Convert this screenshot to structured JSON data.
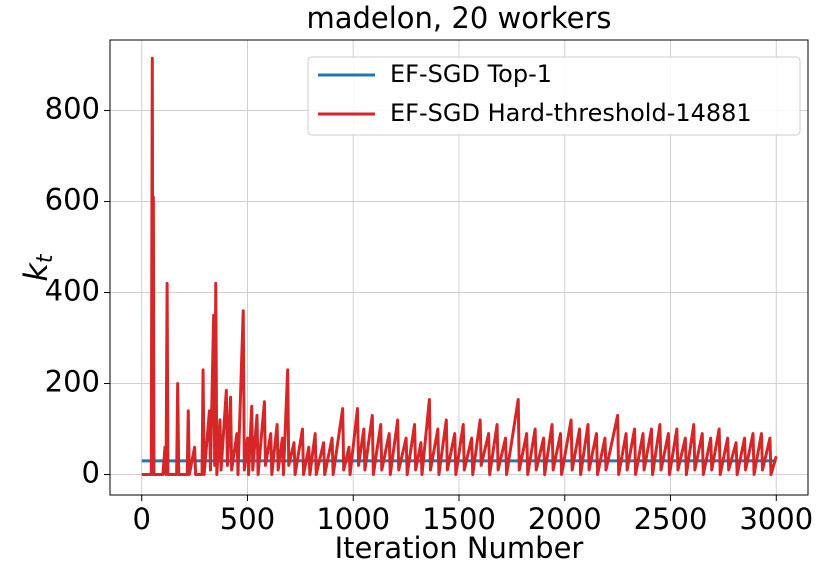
{
  "chart_data": {
    "type": "line",
    "title": "madelon, 20 workers",
    "xlabel": "Iteration Number",
    "ylabel": "k_t",
    "xlim": [
      -150,
      3150
    ],
    "xticks": [
      0,
      500,
      1000,
      1500,
      2000,
      2500,
      3000
    ],
    "ylim": [
      -45,
      955
    ],
    "yticks": [
      0,
      200,
      400,
      600,
      800
    ],
    "grid": true,
    "legend": "upper right",
    "series": [
      {
        "name": "EF-SGD Top-1",
        "color": "#1f77b4",
        "x": [
          0,
          3000
        ],
        "values": [
          30,
          30
        ]
      },
      {
        "name": "EF-SGD Hard-threshold-14881",
        "color": "#d62728",
        "x": [
          0,
          45,
          50,
          53,
          55,
          58,
          100,
          110,
          115,
          120,
          124,
          165,
          170,
          175,
          215,
          220,
          225,
          250,
          255,
          285,
          290,
          295,
          320,
          325,
          340,
          345,
          350,
          355,
          370,
          375,
          400,
          405,
          420,
          425,
          450,
          455,
          480,
          485,
          500,
          505,
          520,
          525,
          545,
          550,
          580,
          585,
          610,
          615,
          640,
          645,
          665,
          670,
          690,
          695,
          720,
          725,
          760,
          765,
          790,
          795,
          820,
          825,
          860,
          865,
          900,
          905,
          950,
          955,
          980,
          985,
          1020,
          1025,
          1050,
          1055,
          1090,
          1095,
          1130,
          1135,
          1170,
          1175,
          1210,
          1215,
          1250,
          1255,
          1290,
          1295,
          1320,
          1325,
          1360,
          1365,
          1400,
          1405,
          1440,
          1445,
          1480,
          1485,
          1520,
          1525,
          1560,
          1565,
          1600,
          1605,
          1640,
          1645,
          1680,
          1685,
          1720,
          1725,
          1780,
          1785,
          1820,
          1825,
          1860,
          1865,
          1900,
          1905,
          1940,
          1945,
          1980,
          1985,
          2030,
          2035,
          2070,
          2075,
          2110,
          2115,
          2150,
          2155,
          2190,
          2195,
          2250,
          2255,
          2290,
          2295,
          2330,
          2335,
          2370,
          2375,
          2410,
          2415,
          2450,
          2455,
          2490,
          2495,
          2530,
          2535,
          2570,
          2575,
          2610,
          2615,
          2650,
          2655,
          2690,
          2695,
          2730,
          2735,
          2770,
          2775,
          2810,
          2815,
          2850,
          2855,
          2890,
          2895,
          2930,
          2935,
          2970,
          2975,
          3000
        ],
        "values": [
          0,
          0,
          915,
          0,
          610,
          0,
          0,
          60,
          0,
          420,
          0,
          0,
          200,
          0,
          0,
          140,
          0,
          60,
          0,
          0,
          230,
          0,
          140,
          10,
          350,
          20,
          420,
          0,
          120,
          10,
          185,
          20,
          170,
          10,
          90,
          0,
          360,
          10,
          80,
          0,
          150,
          10,
          130,
          0,
          160,
          20,
          90,
          0,
          110,
          10,
          80,
          0,
          230,
          20,
          70,
          0,
          100,
          0,
          60,
          0,
          90,
          0,
          70,
          0,
          80,
          0,
          145,
          10,
          60,
          0,
          145,
          20,
          100,
          10,
          130,
          0,
          110,
          10,
          90,
          0,
          120,
          10,
          80,
          0,
          110,
          10,
          70,
          0,
          165,
          10,
          100,
          0,
          120,
          10,
          90,
          0,
          110,
          10,
          80,
          0,
          120,
          20,
          90,
          0,
          110,
          10,
          80,
          0,
          165,
          10,
          90,
          0,
          100,
          10,
          80,
          0,
          110,
          10,
          90,
          0,
          120,
          10,
          100,
          0,
          110,
          10,
          90,
          0,
          80,
          10,
          130,
          0,
          90,
          10,
          100,
          0,
          90,
          10,
          100,
          0,
          110,
          10,
          90,
          0,
          100,
          10,
          80,
          0,
          110,
          10,
          90,
          0,
          80,
          10,
          100,
          0,
          80,
          10,
          70,
          0,
          80,
          10,
          90,
          0,
          90,
          10,
          80,
          0,
          40
        ]
      }
    ]
  }
}
